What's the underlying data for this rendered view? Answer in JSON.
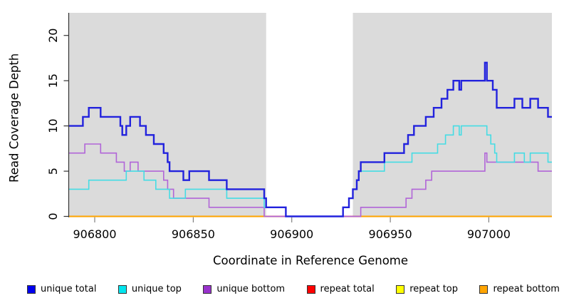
{
  "axes": {
    "x_label": "Coordinate in Reference Genome",
    "y_label": "Read Coverage Depth",
    "x_ticks": [
      "906800",
      "906850",
      "906900",
      "906950",
      "907000"
    ],
    "y_ticks": [
      "0",
      "5",
      "10",
      "15",
      "20"
    ]
  },
  "legend": [
    {
      "label": "unique total",
      "color": "#0000EE"
    },
    {
      "label": "unique top",
      "color": "#00E5EE"
    },
    {
      "label": "unique bottom",
      "color": "#9932CC"
    },
    {
      "label": "repeat total",
      "color": "#FF0000"
    },
    {
      "label": "repeat top",
      "color": "#FFFF00"
    },
    {
      "label": "repeat bottom",
      "color": "#FFA500"
    }
  ],
  "colors": {
    "plot_background": "#DBDBDB",
    "mask_band": "#FFFFFF"
  },
  "chart_data": {
    "type": "line",
    "subtype": "step-coverage",
    "x_range": [
      906787,
      907032
    ],
    "y_max": 22.5,
    "xlabel": "Coordinate in Reference Genome",
    "ylabel": "Read Coverage Depth",
    "x_tick_values": [
      906800,
      906850,
      906900,
      906950,
      907000
    ],
    "y_tick_values": [
      0,
      5,
      10,
      15,
      20
    ],
    "mask_region": {
      "x_start": 906887,
      "x_end": 906931
    },
    "series": [
      {
        "name": "repeat top",
        "color": "#FFFF00",
        "width": 1.5,
        "parts": [
          {
            "points": [
              [
                906787,
                0
              ]
            ],
            "end": 907032
          }
        ]
      },
      {
        "name": "repeat total",
        "color": "#D23757",
        "width": 1.8,
        "parts": [
          {
            "points": [
              [
                906787,
                0
              ]
            ],
            "end": 907032
          }
        ]
      },
      {
        "name": "repeat bottom",
        "color": "#FFA500",
        "width": 2,
        "parts": [
          {
            "points": [
              [
                906787,
                0
              ]
            ],
            "end": 906887
          },
          {
            "points": [
              [
                906935,
                0
              ]
            ],
            "end": 907032
          }
        ]
      },
      {
        "name": "unique bottom",
        "color": "#B165D8",
        "width": 1.6,
        "parts": [
          {
            "points": [
              [
                906787,
                7
              ],
              [
                906795,
                8
              ],
              [
                906803,
                7
              ],
              [
                906811,
                6
              ],
              [
                906815,
                5
              ],
              [
                906818,
                6
              ],
              [
                906822,
                5
              ],
              [
                906835,
                4
              ],
              [
                906837,
                3
              ],
              [
                906840,
                2
              ],
              [
                906858,
                1
              ],
              [
                906886,
                0
              ],
              [
                906935,
                1
              ],
              [
                906958,
                2
              ],
              [
                906961,
                3
              ],
              [
                906968,
                4
              ],
              [
                906971,
                5
              ],
              [
                906998,
                7
              ],
              [
                906999,
                6
              ],
              [
                907025,
                5
              ]
            ],
            "end": 907032
          }
        ]
      },
      {
        "name": "unique top",
        "color": "#45DCE4",
        "width": 1.6,
        "parts": [
          {
            "points": [
              [
                906787,
                3
              ],
              [
                906797,
                4
              ],
              [
                906816,
                5
              ],
              [
                906825,
                4
              ],
              [
                906831,
                3
              ],
              [
                906838,
                2
              ],
              [
                906846,
                3
              ],
              [
                906867,
                2
              ],
              [
                906886,
                1
              ],
              [
                906897,
                0
              ],
              [
                906926,
                1
              ],
              [
                906929,
                2
              ],
              [
                906931,
                3
              ],
              [
                906933,
                4
              ],
              [
                906934,
                5
              ],
              [
                906947,
                6
              ],
              [
                906961,
                7
              ],
              [
                906974,
                8
              ],
              [
                906978,
                9
              ],
              [
                906982,
                10
              ],
              [
                906985,
                9
              ],
              [
                906986,
                10
              ],
              [
                906999,
                9
              ],
              [
                907001,
                8
              ],
              [
                907003,
                7
              ],
              [
                907004,
                6
              ],
              [
                907013,
                7
              ],
              [
                907018,
                6
              ],
              [
                907021,
                7
              ],
              [
                907030,
                6
              ]
            ],
            "end": 907032
          }
        ]
      },
      {
        "name": "unique total",
        "color": "#2222DD",
        "width": 2.4,
        "parts": [
          {
            "points": [
              [
                906787,
                10
              ],
              [
                906794,
                11
              ],
              [
                906797,
                12
              ],
              [
                906803,
                11
              ],
              [
                906813,
                10
              ],
              [
                906814,
                9
              ],
              [
                906816,
                10
              ],
              [
                906818,
                11
              ],
              [
                906823,
                10
              ],
              [
                906826,
                9
              ],
              [
                906830,
                8
              ],
              [
                906835,
                7
              ],
              [
                906837,
                6
              ],
              [
                906838,
                5
              ],
              [
                906845,
                4
              ],
              [
                906848,
                5
              ],
              [
                906858,
                4
              ],
              [
                906867,
                3
              ],
              [
                906886,
                2
              ],
              [
                906887,
                1
              ],
              [
                906897,
                0
              ],
              [
                906926,
                1
              ],
              [
                906929,
                2
              ],
              [
                906931,
                3
              ],
              [
                906933,
                4
              ],
              [
                906934,
                5
              ],
              [
                906935,
                6
              ],
              [
                906947,
                7
              ],
              [
                906957,
                8
              ],
              [
                906959,
                9
              ],
              [
                906962,
                10
              ],
              [
                906968,
                11
              ],
              [
                906972,
                12
              ],
              [
                906976,
                13
              ],
              [
                906979,
                14
              ],
              [
                906982,
                15
              ],
              [
                906985,
                14
              ],
              [
                906986,
                15
              ],
              [
                906998,
                17
              ],
              [
                906999,
                15
              ],
              [
                907002,
                14
              ],
              [
                907004,
                12
              ],
              [
                907013,
                13
              ],
              [
                907017,
                12
              ],
              [
                907021,
                13
              ],
              [
                907025,
                12
              ],
              [
                907030,
                11
              ]
            ],
            "end": 907032
          }
        ]
      }
    ]
  }
}
